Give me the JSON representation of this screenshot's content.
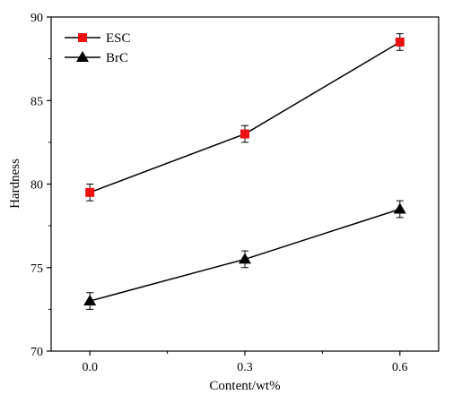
{
  "chart_data": {
    "type": "line",
    "xlabel": "Content/wt%",
    "ylabel": "Hardness",
    "x": [
      0.0,
      0.3,
      0.6
    ],
    "x_tick_labels": [
      "0.0",
      "0.3",
      "0.6"
    ],
    "xlim": [
      -0.075,
      0.675
    ],
    "ylim": [
      70,
      90
    ],
    "y_ticks": [
      70,
      75,
      80,
      85,
      90
    ],
    "y_tick_labels": [
      "70",
      "75",
      "80",
      "85",
      "90"
    ],
    "grid": false,
    "legend_position": "top-left",
    "series": [
      {
        "name": "ESC",
        "marker": "square",
        "marker_color": "#ee1111",
        "line_color": "#000000",
        "values": [
          79.5,
          83.0,
          88.5
        ],
        "errors": [
          0.5,
          0.5,
          0.5
        ]
      },
      {
        "name": "BrC",
        "marker": "triangle",
        "marker_color": "#000000",
        "line_color": "#000000",
        "values": [
          73.0,
          75.5,
          78.5
        ],
        "errors": [
          0.5,
          0.5,
          0.5
        ]
      }
    ]
  }
}
